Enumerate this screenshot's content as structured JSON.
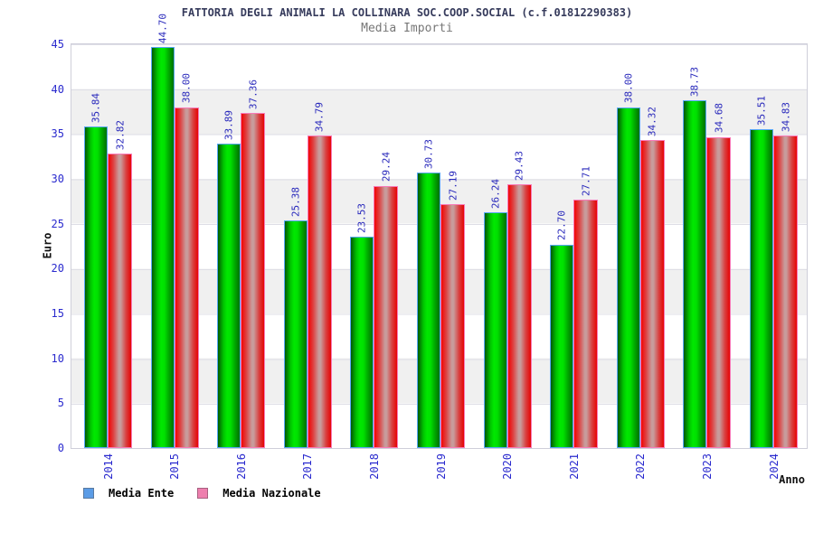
{
  "title": "FATTORIA DEGLI ANIMALI LA COLLINARA SOC.COOP.SOCIAL (c.f.01812290383)",
  "subtitle": "Media Importi",
  "axes": {
    "y_label": "Euro",
    "x_label": "Anno",
    "y_ticks": [
      45,
      40,
      35,
      30,
      25,
      20,
      15,
      10,
      5,
      0
    ],
    "y_max": 45
  },
  "legend": [
    {
      "label": "Media Ente",
      "swatch_color": "#5b9ce6",
      "swatch_border": "#5a7aa0"
    },
    {
      "label": "Media Nazionale",
      "swatch_color": "#ee7fae",
      "swatch_border": "#a86080"
    }
  ],
  "chart_data": {
    "type": "bar",
    "title": "FATTORIA DEGLI ANIMALI LA COLLINARA SOC.COOP.SOCIAL (c.f.01812290383)",
    "subtitle": "Media Importi",
    "categories": [
      "2014",
      "2015",
      "2016",
      "2017",
      "2018",
      "2019",
      "2020",
      "2021",
      "2022",
      "2023",
      "2024"
    ],
    "series": [
      {
        "name": "Media Ente",
        "color_theme": "green",
        "values": [
          35.84,
          44.7,
          33.89,
          25.38,
          23.53,
          30.73,
          26.24,
          22.7,
          38.0,
          38.73,
          35.51
        ]
      },
      {
        "name": "Media Nazionale",
        "color_theme": "red",
        "values": [
          32.82,
          38.0,
          37.36,
          34.79,
          29.24,
          27.19,
          29.43,
          27.71,
          34.32,
          34.68,
          34.83
        ]
      }
    ],
    "xlabel": "Anno",
    "ylabel": "Euro",
    "ylim": [
      0,
      45
    ],
    "grid": "horizontal-bands",
    "legend_position": "bottom-left",
    "value_labels": "rotated-90-above-bars",
    "tick_label_rotation": "vertical"
  },
  "colors": {
    "title_text": "#363b5c",
    "subtitle_text": "#777777",
    "tick_text": "#2a2ace",
    "bar_value_text": "#2828bb",
    "band_gray": "#f0f0f0",
    "plot_border": "#cfcfda",
    "green_bar_border": "#58a8f8",
    "green_bar_core": "#00e800",
    "red_bar_border": "#f87ab8",
    "red_bar_edge": "#e60404"
  }
}
